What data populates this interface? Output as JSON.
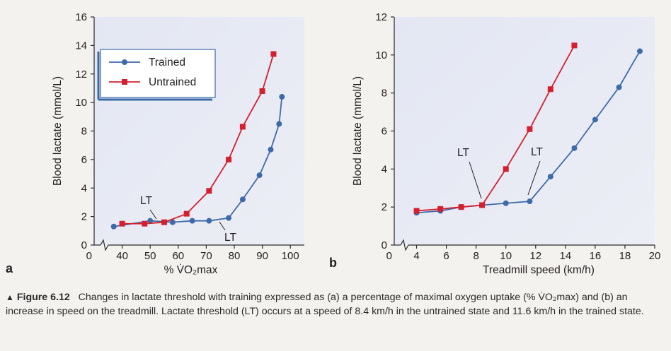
{
  "chart_data": [
    {
      "type": "line",
      "panel_label": "a",
      "xlabel": "% V̇O₂max",
      "ylabel": "Blood lactate (mmol/L)",
      "xlim": [
        30,
        105
      ],
      "ylim": [
        0,
        16
      ],
      "xticks": [
        0,
        40,
        50,
        60,
        70,
        80,
        90,
        100
      ],
      "yticks": [
        0,
        2,
        4,
        6,
        8,
        10,
        12,
        14,
        16
      ],
      "axis_break": "x",
      "legend": {
        "position": "top-left",
        "entries": [
          "Trained",
          "Untrained"
        ]
      },
      "series": [
        {
          "name": "Trained",
          "color": "#3d6aa9",
          "marker": "circle",
          "x": [
            37,
            50,
            58,
            65,
            71,
            78,
            83,
            89,
            93,
            96,
            97
          ],
          "y": [
            1.3,
            1.7,
            1.6,
            1.7,
            1.7,
            1.9,
            3.2,
            4.9,
            6.7,
            8.5,
            10.4
          ]
        },
        {
          "name": "Untrained",
          "color": "#d4202e",
          "marker": "square",
          "x": [
            40,
            48,
            55,
            63,
            71,
            78,
            83,
            90,
            94
          ],
          "y": [
            1.5,
            1.5,
            1.6,
            2.2,
            3.8,
            6.0,
            8.3,
            10.8,
            13.4
          ]
        }
      ],
      "annotations": [
        {
          "text": "LT",
          "series": "Untrained",
          "x": 55,
          "y": 1.6
        },
        {
          "text": "LT",
          "series": "Trained",
          "x": 78,
          "y": 1.9
        }
      ]
    },
    {
      "type": "line",
      "panel_label": "b",
      "xlabel": "Treadmill speed (km/h)",
      "ylabel": "Blood lactate (mmol/L)",
      "xlim": [
        2.5,
        20
      ],
      "ylim": [
        0,
        12
      ],
      "xticks": [
        0,
        4,
        6,
        8,
        10,
        12,
        14,
        16,
        18,
        20
      ],
      "yticks": [
        0,
        2,
        4,
        6,
        8,
        10,
        12
      ],
      "axis_break": "x",
      "series": [
        {
          "name": "Trained",
          "color": "#3d6aa9",
          "marker": "circle",
          "x": [
            4,
            5.6,
            7,
            8.4,
            10,
            11.6,
            13,
            14.6,
            16,
            17.6,
            19
          ],
          "y": [
            1.7,
            1.8,
            2.0,
            2.1,
            2.2,
            2.3,
            3.6,
            5.1,
            6.6,
            8.3,
            10.2
          ]
        },
        {
          "name": "Untrained",
          "color": "#d4202e",
          "marker": "square",
          "x": [
            4,
            5.6,
            7,
            8.4,
            10,
            11.6,
            13,
            14.6
          ],
          "y": [
            1.8,
            1.9,
            2.0,
            2.1,
            4.0,
            6.1,
            8.2,
            10.5
          ]
        }
      ],
      "annotations": [
        {
          "text": "LT",
          "series": "Untrained",
          "x": 8.4,
          "y": 2.1
        },
        {
          "text": "LT",
          "series": "Trained",
          "x": 11.6,
          "y": 2.3
        }
      ]
    }
  ],
  "caption": {
    "marker": "▲",
    "figure": "Figure 6.12",
    "text": "Changes in lactate threshold with training expressed as (a) a percentage of maximal oxygen uptake (% V̇O₂max) and (b) an increase in speed on the treadmill. Lactate threshold (LT) occurs at a speed of 8.4 km/h in the untrained state and 11.6 km/h in the trained state."
  }
}
